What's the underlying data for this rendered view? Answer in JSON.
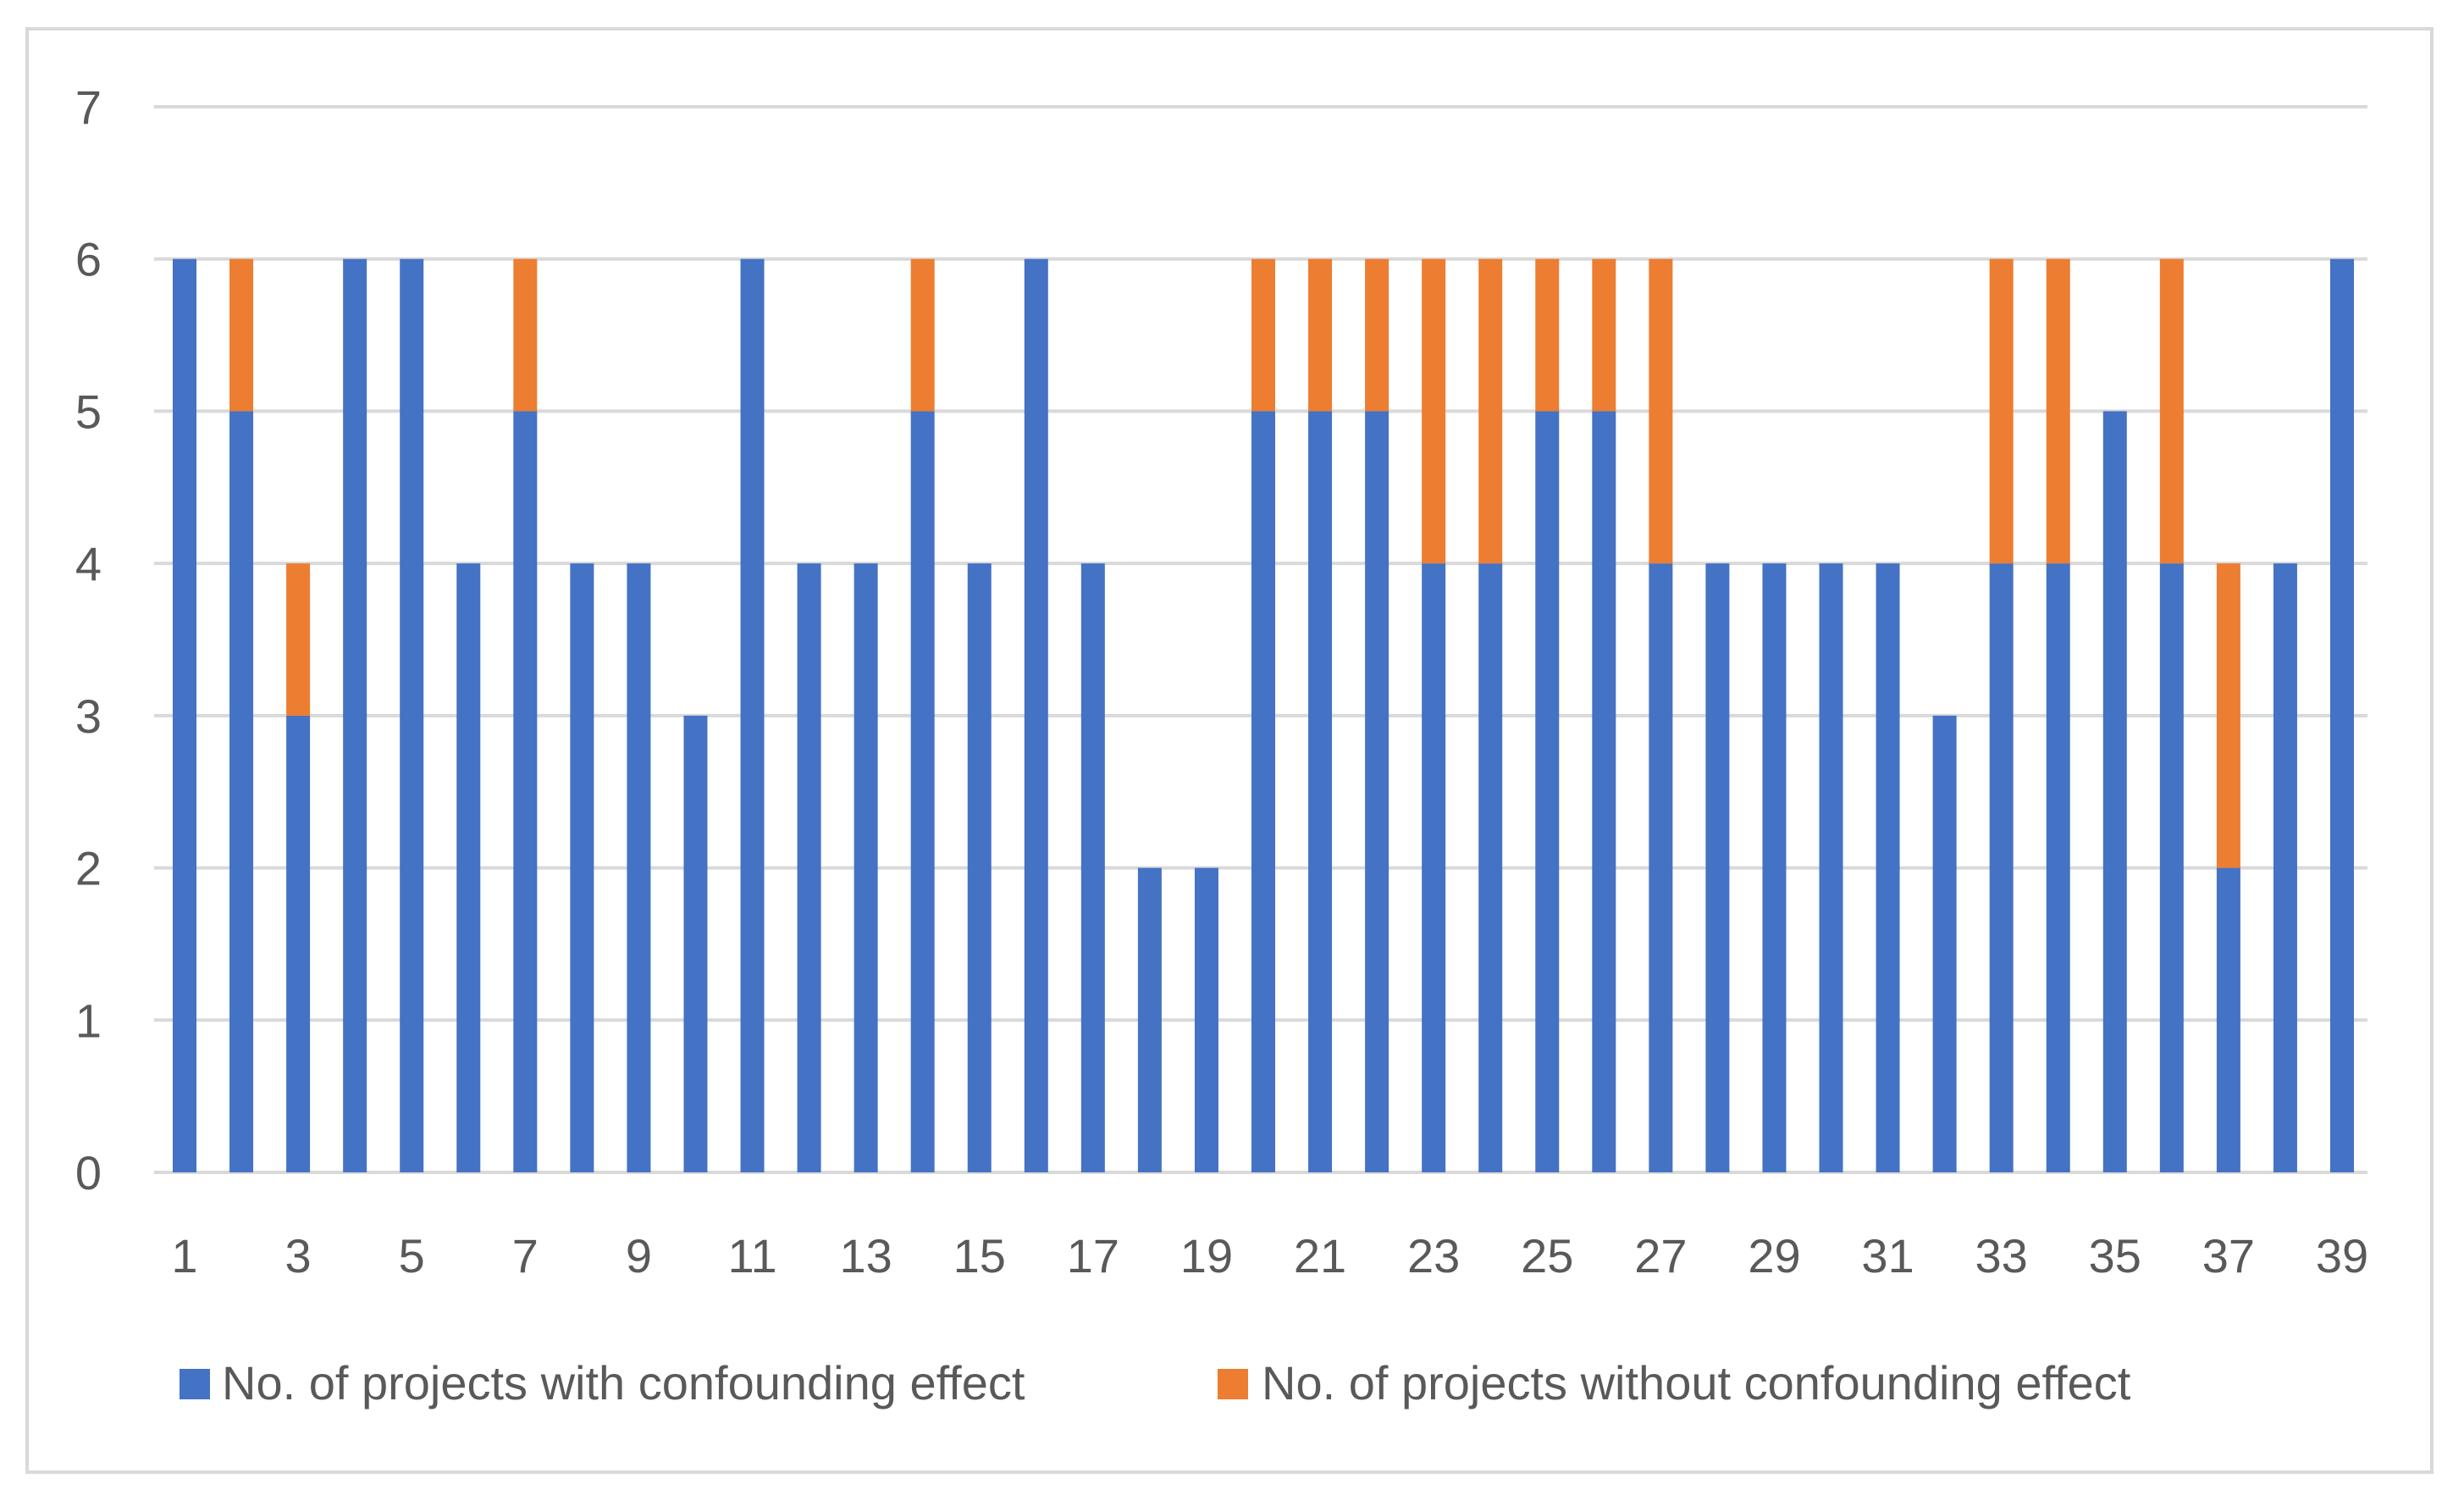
{
  "chart_data": {
    "type": "bar",
    "stacked": true,
    "categories": [
      "1",
      "2",
      "3",
      "4",
      "5",
      "6",
      "7",
      "8",
      "9",
      "10",
      "11",
      "12",
      "13",
      "14",
      "15",
      "16",
      "17",
      "18",
      "19",
      "20",
      "21",
      "22",
      "23",
      "24",
      "25",
      "26",
      "27",
      "28",
      "29",
      "30",
      "31",
      "32",
      "33",
      "34",
      "35",
      "36",
      "37",
      "38",
      "39"
    ],
    "x_tick_labels": [
      "1",
      "3",
      "5",
      "7",
      "9",
      "11",
      "13",
      "15",
      "17",
      "19",
      "21",
      "23",
      "25",
      "27",
      "29",
      "31",
      "33",
      "35",
      "37",
      "39"
    ],
    "y_ticks": [
      "0",
      "1",
      "2",
      "3",
      "4",
      "5",
      "6",
      "7"
    ],
    "ylim": [
      0,
      7
    ],
    "grid": true,
    "legend_position": "bottom",
    "series": [
      {
        "name": "No. of projects with confounding effect",
        "color": "#4472c4",
        "values": [
          6,
          5,
          3,
          6,
          6,
          4,
          5,
          4,
          4,
          3,
          6,
          4,
          4,
          5,
          4,
          6,
          4,
          2,
          2,
          5,
          5,
          5,
          4,
          4,
          5,
          5,
          4,
          4,
          4,
          4,
          4,
          3,
          4,
          4,
          5,
          4,
          2,
          4,
          6
        ]
      },
      {
        "name": "No. of projects without confounding effect",
        "color": "#ed7d31",
        "values": [
          0,
          1,
          1,
          0,
          0,
          0,
          1,
          0,
          0,
          0,
          0,
          0,
          0,
          1,
          0,
          0,
          0,
          0,
          0,
          1,
          1,
          1,
          2,
          2,
          1,
          1,
          2,
          0,
          0,
          0,
          0,
          0,
          2,
          2,
          0,
          2,
          2,
          0,
          0
        ]
      }
    ]
  }
}
